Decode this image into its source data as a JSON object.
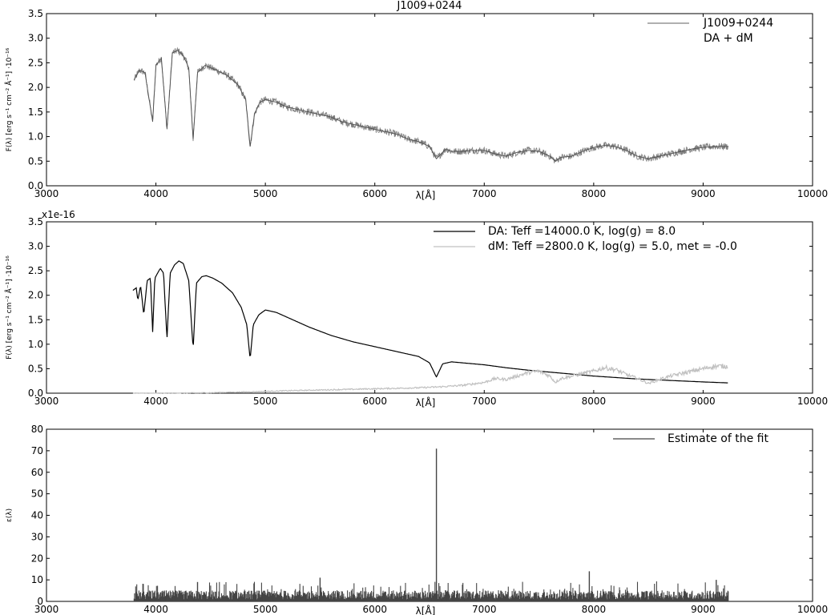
{
  "chart_data": [
    {
      "type": "line",
      "title": "J1009+0244",
      "xlabel": "λ[Å]",
      "ylabel": "F(λ) [erg s⁻¹ cm⁻² Å⁻¹] ·10⁻¹⁶",
      "xlim": [
        3000,
        10000
      ],
      "ylim": [
        0.0,
        3.5
      ],
      "x_ticks": [
        "3000",
        "4000",
        "5000",
        "6000",
        "7000",
        "8000",
        "9000",
        "10000"
      ],
      "y_ticks": [
        "0.0",
        "0.5",
        "1.0",
        "1.5",
        "2.0",
        "2.5",
        "3.0",
        "3.5"
      ],
      "legend_position": "top-right",
      "legend": [
        "J1009+0244",
        "DA + dM"
      ],
      "grid": false,
      "series": [
        {
          "name": "J1009+0244",
          "color": "#808080",
          "x": [
            3800,
            3850,
            3900,
            3970,
            4000,
            4050,
            4101,
            4150,
            4200,
            4250,
            4300,
            4340,
            4380,
            4450,
            4550,
            4650,
            4750,
            4820,
            4861,
            4900,
            4950,
            5000,
            5100,
            5200,
            5300,
            5400,
            5500,
            5600,
            5700,
            5800,
            5900,
            6000,
            6100,
            6200,
            6300,
            6400,
            6500,
            6563,
            6650,
            6700,
            6800,
            6900,
            7000,
            7100,
            7200,
            7300,
            7400,
            7500,
            7600,
            7650,
            7700,
            7800,
            7900,
            8000,
            8100,
            8200,
            8300,
            8400,
            8500,
            8600,
            8700,
            8800,
            8900,
            9000,
            9100,
            9230
          ],
          "y": [
            2.15,
            2.35,
            2.3,
            1.3,
            2.45,
            2.6,
            1.15,
            2.7,
            2.75,
            2.65,
            2.4,
            0.95,
            2.3,
            2.45,
            2.35,
            2.25,
            2.05,
            1.75,
            0.8,
            1.45,
            1.7,
            1.75,
            1.7,
            1.6,
            1.55,
            1.5,
            1.45,
            1.4,
            1.3,
            1.25,
            1.2,
            1.15,
            1.1,
            1.05,
            0.95,
            0.9,
            0.8,
            0.55,
            0.75,
            0.7,
            0.7,
            0.72,
            0.72,
            0.65,
            0.6,
            0.68,
            0.72,
            0.7,
            0.6,
            0.5,
            0.58,
            0.6,
            0.7,
            0.78,
            0.82,
            0.8,
            0.72,
            0.6,
            0.55,
            0.6,
            0.65,
            0.7,
            0.75,
            0.78,
            0.8,
            0.8
          ]
        }
      ]
    },
    {
      "type": "line",
      "xlabel": "λ[Å]",
      "ylabel": "F(λ) [erg s⁻¹ cm⁻² Å⁻¹] ·10⁻¹⁶",
      "offset_text": "x1e-16",
      "xlim": [
        3000,
        10000
      ],
      "ylim": [
        0.0,
        3.5
      ],
      "x_ticks": [
        "3000",
        "4000",
        "5000",
        "6000",
        "7000",
        "8000",
        "9000",
        "10000"
      ],
      "y_ticks": [
        "0.0",
        "0.5",
        "1.0",
        "1.5",
        "2.0",
        "2.5",
        "3.0",
        "3.5"
      ],
      "legend_position": "top-right",
      "grid": false,
      "series": [
        {
          "name": "DA: Teff =14000.0 K, log(g) = 8.0",
          "color": "#000000",
          "x": [
            3790,
            3820,
            3835,
            3860,
            3889,
            3920,
            3950,
            3970,
            3990,
            4040,
            4070,
            4101,
            4130,
            4170,
            4210,
            4250,
            4300,
            4340,
            4370,
            4420,
            4460,
            4520,
            4600,
            4700,
            4780,
            4830,
            4861,
            4890,
            4940,
            5000,
            5100,
            5200,
            5400,
            5600,
            5800,
            6000,
            6200,
            6400,
            6500,
            6563,
            6620,
            6700,
            6800,
            7000,
            7200,
            7400,
            7600,
            7800,
            8000,
            8200,
            8400,
            8600,
            8800,
            9000,
            9230
          ],
          "y": [
            2.1,
            2.15,
            1.9,
            2.2,
            1.6,
            2.3,
            2.35,
            1.25,
            2.35,
            2.55,
            2.45,
            1.1,
            2.45,
            2.62,
            2.7,
            2.65,
            2.3,
            0.9,
            2.25,
            2.38,
            2.4,
            2.35,
            2.25,
            2.05,
            1.75,
            1.4,
            0.7,
            1.4,
            1.6,
            1.7,
            1.65,
            1.55,
            1.35,
            1.18,
            1.05,
            0.95,
            0.85,
            0.75,
            0.62,
            0.33,
            0.6,
            0.64,
            0.62,
            0.58,
            0.52,
            0.47,
            0.43,
            0.39,
            0.35,
            0.32,
            0.29,
            0.27,
            0.25,
            0.23,
            0.21
          ]
        },
        {
          "name": "dM: Teff =2800.0 K, log(g) = 5.0, met = -0.0",
          "color": "#c0c0c0",
          "x": [
            3790,
            4000,
            4500,
            4900,
            5200,
            5600,
            6000,
            6400,
            6600,
            6800,
            7000,
            7100,
            7200,
            7300,
            7400,
            7500,
            7600,
            7650,
            7700,
            7800,
            7900,
            8000,
            8100,
            8200,
            8300,
            8400,
            8500,
            8600,
            8700,
            8800,
            8900,
            9000,
            9100,
            9230
          ],
          "y": [
            0.0,
            0.0,
            0.01,
            0.03,
            0.05,
            0.07,
            0.09,
            0.11,
            0.13,
            0.16,
            0.22,
            0.3,
            0.28,
            0.35,
            0.42,
            0.45,
            0.35,
            0.22,
            0.3,
            0.35,
            0.4,
            0.45,
            0.52,
            0.48,
            0.38,
            0.3,
            0.2,
            0.28,
            0.35,
            0.4,
            0.45,
            0.5,
            0.55,
            0.55
          ]
        }
      ]
    },
    {
      "type": "bar",
      "xlabel": "λ[Å]",
      "ylabel": "ε(λ)",
      "xlim": [
        3000,
        10000
      ],
      "ylim": [
        0,
        80
      ],
      "x_ticks": [
        "3000",
        "4000",
        "5000",
        "6000",
        "7000",
        "8000",
        "9000",
        "10000"
      ],
      "y_ticks": [
        "0",
        "10",
        "20",
        "30",
        "40",
        "50",
        "60",
        "70",
        "80"
      ],
      "legend_position": "top-right",
      "grid": false,
      "series": [
        {
          "name": "Estimate of the fit",
          "color": "#444444",
          "x_range": [
            3800,
            9230
          ],
          "typical_value": 3,
          "max_noise": 11,
          "peaks": [
            {
              "x": 6563,
              "y": 71
            },
            {
              "x": 7960,
              "y": 14
            },
            {
              "x": 4380,
              "y": 9
            },
            {
              "x": 5500,
              "y": 11
            },
            {
              "x": 9120,
              "y": 10
            }
          ]
        }
      ]
    }
  ]
}
